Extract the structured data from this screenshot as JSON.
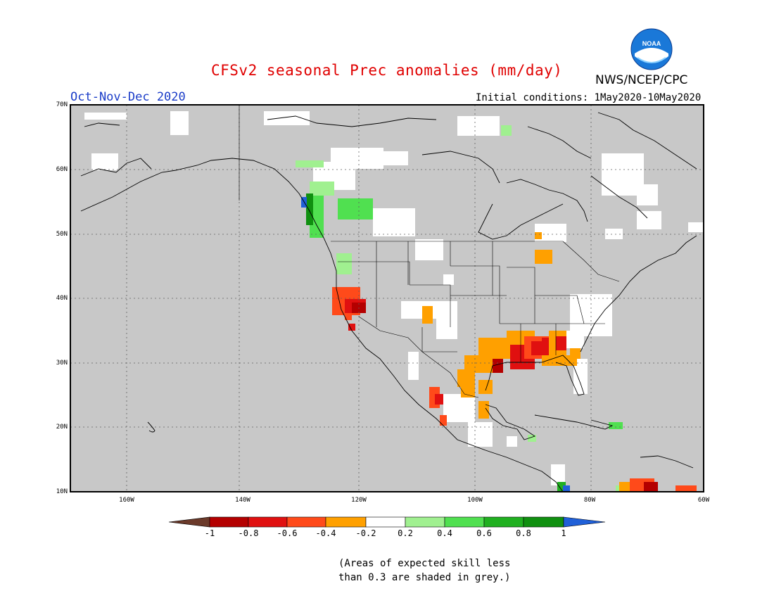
{
  "header": {
    "title": "CFSv2 seasonal Prec anomalies (mm/day)",
    "period": "Oct-Nov-Dec 2020",
    "initial_conditions": "Initial conditions: 1May2020-10May2020",
    "agency": "NWS/NCEP/CPC",
    "logo_text": "NOAA"
  },
  "axes": {
    "lat_labels": [
      "70N",
      "60N",
      "50N",
      "40N",
      "30N",
      "20N",
      "10N"
    ],
    "lon_labels": [
      "160W",
      "140W",
      "120W",
      "100W",
      "80W",
      "60W"
    ]
  },
  "colorbar": {
    "labels": [
      "-1",
      "-0.8",
      "-0.6",
      "-0.4",
      "-0.2",
      "0.2",
      "0.4",
      "0.6",
      "0.8",
      "1"
    ],
    "colors": [
      "#6b3a2a",
      "#b40000",
      "#e01010",
      "#ff4a1a",
      "#ffa000",
      "#ffffff",
      "#a0f090",
      "#50e050",
      "#20b020",
      "#109010",
      "#2060d8"
    ]
  },
  "note": {
    "line1": "(Areas of expected skill less",
    "line2": "than 0.3 are shaded in grey.)"
  },
  "colors": {
    "grey_mask": "#c8c8c8",
    "title": "#e00000",
    "period": "#1a3cc8"
  }
}
